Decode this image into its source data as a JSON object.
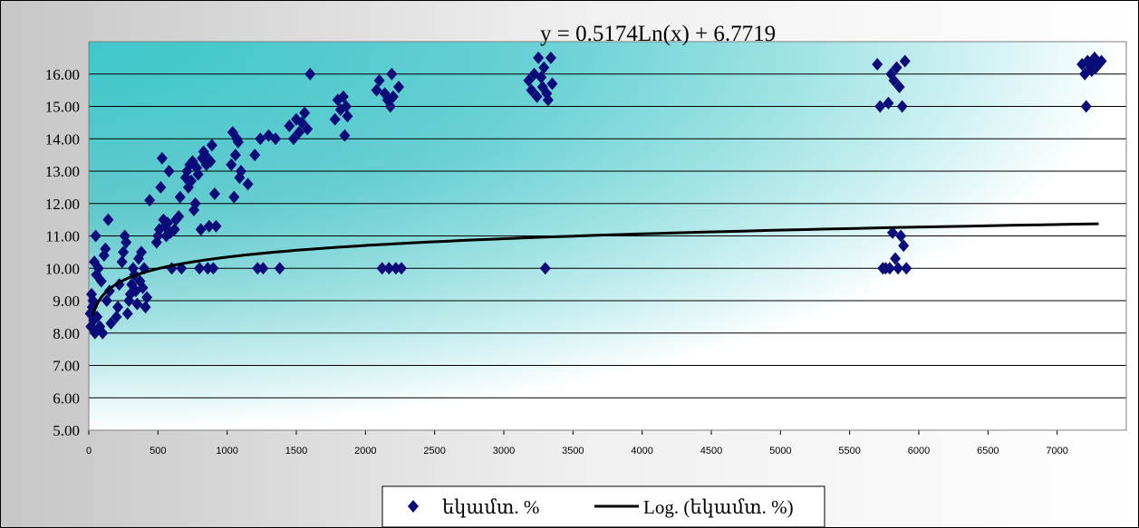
{
  "chart_data": {
    "type": "scatter",
    "xlim": [
      0,
      7500
    ],
    "ylim": [
      5,
      17
    ],
    "x_ticks": [
      0,
      500,
      1000,
      1500,
      2000,
      2500,
      3000,
      3500,
      4000,
      4500,
      5000,
      5500,
      6000,
      6500,
      7000
    ],
    "y_ticks": [
      "5.00",
      "6.00",
      "7.00",
      "8.00",
      "9.00",
      "10.00",
      "11.00",
      "12.00",
      "13.00",
      "14.00",
      "15.00",
      "16.00"
    ],
    "grid": "horizontal",
    "trendline": {
      "equation_label": "y = 0.5174Ln(x) + 6.7719",
      "a": 0.5174,
      "b": 6.7719,
      "x_range": [
        30,
        7300
      ]
    },
    "legend": {
      "position": "bottom",
      "entries": [
        "եկամտ. %",
        "Log. (եկամտ. %)"
      ]
    },
    "colors": {
      "marker": "#0a0a78",
      "trend": "#000000",
      "plot_bg_dark": "#3ec8cc",
      "plot_bg_light": "#ffffff",
      "outer_bg": "#dcdcdc"
    },
    "series": [
      {
        "points": [
          [
            10,
            8.6
          ],
          [
            15,
            8.2
          ],
          [
            20,
            9.2
          ],
          [
            25,
            8.8
          ],
          [
            30,
            9.0
          ],
          [
            35,
            8.4
          ],
          [
            40,
            10.2
          ],
          [
            45,
            8.0
          ],
          [
            50,
            11.0
          ],
          [
            55,
            9.8
          ],
          [
            60,
            8.5
          ],
          [
            70,
            10.0
          ],
          [
            80,
            8.2
          ],
          [
            90,
            9.6
          ],
          [
            100,
            8.0
          ],
          [
            110,
            10.4
          ],
          [
            120,
            10.6
          ],
          [
            130,
            9.0
          ],
          [
            140,
            11.5
          ],
          [
            150,
            9.3
          ],
          [
            160,
            8.3
          ],
          [
            200,
            8.5
          ],
          [
            210,
            8.8
          ],
          [
            220,
            9.5
          ],
          [
            240,
            10.2
          ],
          [
            250,
            10.5
          ],
          [
            260,
            11.0
          ],
          [
            270,
            10.8
          ],
          [
            280,
            8.6
          ],
          [
            290,
            9.0
          ],
          [
            300,
            9.2
          ],
          [
            310,
            9.5
          ],
          [
            320,
            10.0
          ],
          [
            330,
            9.8
          ],
          [
            340,
            9.3
          ],
          [
            350,
            8.9
          ],
          [
            360,
            10.3
          ],
          [
            370,
            9.6
          ],
          [
            380,
            10.5
          ],
          [
            390,
            9.4
          ],
          [
            400,
            10.0
          ],
          [
            410,
            8.8
          ],
          [
            420,
            9.1
          ],
          [
            440,
            12.1
          ],
          [
            490,
            10.8
          ],
          [
            500,
            11.0
          ],
          [
            510,
            11.2
          ],
          [
            520,
            12.5
          ],
          [
            530,
            13.4
          ],
          [
            540,
            11.5
          ],
          [
            550,
            11.3
          ],
          [
            560,
            11.0
          ],
          [
            570,
            11.4
          ],
          [
            580,
            13.0
          ],
          [
            590,
            11.1
          ],
          [
            600,
            10.0
          ],
          [
            620,
            11.2
          ],
          [
            630,
            11.5
          ],
          [
            650,
            11.6
          ],
          [
            660,
            12.2
          ],
          [
            670,
            10.0
          ],
          [
            700,
            12.8
          ],
          [
            710,
            13.0
          ],
          [
            720,
            12.5
          ],
          [
            730,
            13.2
          ],
          [
            740,
            12.7
          ],
          [
            750,
            13.3
          ],
          [
            760,
            11.8
          ],
          [
            770,
            12.0
          ],
          [
            780,
            13.1
          ],
          [
            790,
            12.9
          ],
          [
            800,
            10.0
          ],
          [
            810,
            11.2
          ],
          [
            820,
            13.4
          ],
          [
            830,
            13.6
          ],
          [
            840,
            13.5
          ],
          [
            850,
            13.2
          ],
          [
            860,
            10.0
          ],
          [
            870,
            11.3
          ],
          [
            880,
            13.3
          ],
          [
            890,
            13.8
          ],
          [
            900,
            10.0
          ],
          [
            910,
            12.3
          ],
          [
            920,
            11.3
          ],
          [
            1030,
            13.2
          ],
          [
            1040,
            14.2
          ],
          [
            1050,
            12.2
          ],
          [
            1060,
            13.5
          ],
          [
            1070,
            14.0
          ],
          [
            1080,
            13.9
          ],
          [
            1090,
            12.8
          ],
          [
            1100,
            13.0
          ],
          [
            1150,
            12.6
          ],
          [
            1200,
            13.5
          ],
          [
            1220,
            10.0
          ],
          [
            1240,
            14.0
          ],
          [
            1260,
            10.0
          ],
          [
            1300,
            14.1
          ],
          [
            1350,
            14.0
          ],
          [
            1380,
            10.0
          ],
          [
            1450,
            14.4
          ],
          [
            1480,
            14.0
          ],
          [
            1500,
            14.6
          ],
          [
            1520,
            14.2
          ],
          [
            1540,
            14.5
          ],
          [
            1560,
            14.8
          ],
          [
            1580,
            14.3
          ],
          [
            1600,
            16.0
          ],
          [
            1780,
            14.6
          ],
          [
            1800,
            15.2
          ],
          [
            1820,
            14.9
          ],
          [
            1840,
            15.3
          ],
          [
            1850,
            14.1
          ],
          [
            1860,
            15.0
          ],
          [
            1870,
            14.7
          ],
          [
            2080,
            15.5
          ],
          [
            2100,
            15.8
          ],
          [
            2120,
            10.0
          ],
          [
            2140,
            15.4
          ],
          [
            2160,
            15.2
          ],
          [
            2170,
            10.0
          ],
          [
            2180,
            15.0
          ],
          [
            2190,
            16.0
          ],
          [
            2200,
            15.3
          ],
          [
            2220,
            10.0
          ],
          [
            2240,
            15.6
          ],
          [
            2260,
            10.0
          ],
          [
            3180,
            15.8
          ],
          [
            3200,
            15.5
          ],
          [
            3220,
            16.0
          ],
          [
            3240,
            15.3
          ],
          [
            3250,
            16.5
          ],
          [
            3270,
            15.9
          ],
          [
            3280,
            15.6
          ],
          [
            3290,
            16.2
          ],
          [
            3300,
            10.0
          ],
          [
            3310,
            15.4
          ],
          [
            3320,
            15.2
          ],
          [
            3340,
            16.5
          ],
          [
            3350,
            15.7
          ],
          [
            5700,
            16.3
          ],
          [
            5720,
            15.0
          ],
          [
            5740,
            10.0
          ],
          [
            5760,
            10.0
          ],
          [
            5780,
            15.1
          ],
          [
            5790,
            10.0
          ],
          [
            5800,
            16.0
          ],
          [
            5810,
            11.1
          ],
          [
            5820,
            15.8
          ],
          [
            5830,
            10.3
          ],
          [
            5840,
            16.2
          ],
          [
            5850,
            10.0
          ],
          [
            5860,
            15.6
          ],
          [
            5870,
            11.0
          ],
          [
            5880,
            15.0
          ],
          [
            5890,
            10.7
          ],
          [
            5900,
            16.4
          ],
          [
            5910,
            10.0
          ],
          [
            7180,
            16.3
          ],
          [
            7200,
            16.0
          ],
          [
            7210,
            15.0
          ],
          [
            7220,
            16.4
          ],
          [
            7240,
            16.2
          ],
          [
            7250,
            16.1
          ],
          [
            7260,
            16.3
          ],
          [
            7270,
            16.5
          ],
          [
            7280,
            16.2
          ],
          [
            7300,
            16.3
          ],
          [
            7320,
            16.4
          ]
        ]
      }
    ]
  }
}
